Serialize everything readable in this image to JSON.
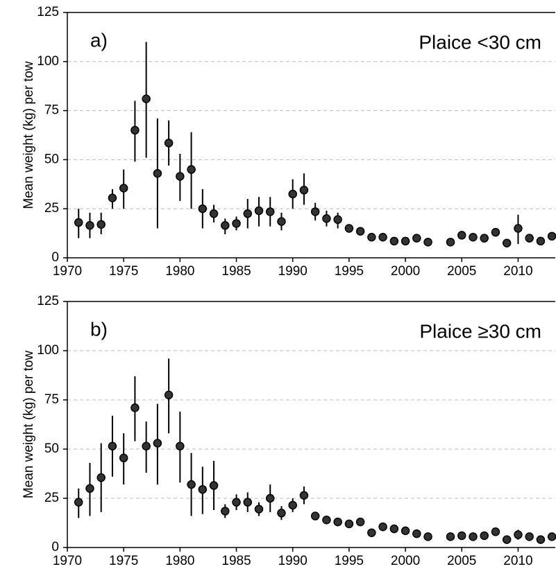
{
  "chart_data": [
    {
      "type": "errorbar-scatter",
      "label": "a)",
      "title": "Plaice <30 cm",
      "ylabel": "Mean weight (kg) per tow",
      "xlim": [
        1970,
        2013.3
      ],
      "xticks": [
        1970,
        1975,
        1980,
        1985,
        1990,
        1995,
        2000,
        2005,
        2010
      ],
      "ylim": [
        0,
        125
      ],
      "yticks": [
        0,
        25,
        50,
        75,
        100,
        125
      ],
      "grid": true,
      "color": "#333333",
      "x": [
        1971,
        1972,
        1973,
        1974,
        1975,
        1976,
        1977,
        1978,
        1979,
        1980,
        1981,
        1982,
        1983,
        1984,
        1985,
        1986,
        1987,
        1988,
        1989,
        1990,
        1991,
        1992,
        1993,
        1994,
        1995,
        1996,
        1997,
        1998,
        1999,
        2000,
        2001,
        2002,
        2004,
        2005,
        2006,
        2007,
        2008,
        2009,
        2010,
        2011,
        2012,
        2013
      ],
      "values": [
        18,
        16.5,
        17,
        30.5,
        35.5,
        65,
        81,
        43,
        58.5,
        41.5,
        45,
        25,
        22.5,
        16.5,
        17.5,
        22.5,
        24,
        23.5,
        18.5,
        32.5,
        34.5,
        23.5,
        20,
        19.5,
        15,
        13.5,
        10.5,
        10.5,
        8.5,
        8.5,
        10,
        8,
        8,
        11.5,
        10.5,
        10,
        13,
        7.5,
        15,
        10,
        8.5,
        11
      ],
      "lower": [
        10,
        10,
        12,
        25,
        25,
        49,
        51,
        15,
        47,
        29,
        25,
        15,
        18,
        12,
        14,
        15,
        16,
        16,
        14,
        25,
        27,
        19,
        16,
        15,
        13,
        12,
        9,
        9,
        7,
        7,
        8,
        7,
        7,
        10,
        9,
        9,
        11,
        6,
        7,
        9,
        7,
        9
      ],
      "upper": [
        25,
        23,
        23,
        35,
        45,
        80,
        110,
        71,
        70,
        53,
        64,
        35,
        27,
        20,
        21,
        30,
        31,
        31,
        23,
        40,
        43,
        28,
        24,
        23,
        17,
        15,
        12,
        12,
        10,
        10,
        12,
        9,
        9,
        13,
        12,
        11,
        15,
        9,
        22,
        11,
        10,
        13
      ]
    },
    {
      "type": "errorbar-scatter",
      "label": "b)",
      "title": "Plaice ≥30 cm",
      "ylabel": "Mean weight (kg) per tow",
      "xlim": [
        1970,
        2013.3
      ],
      "xticks": [
        1970,
        1975,
        1980,
        1985,
        1990,
        1995,
        2000,
        2005,
        2010
      ],
      "ylim": [
        0,
        125
      ],
      "yticks": [
        0,
        25,
        50,
        75,
        100,
        125
      ],
      "grid": true,
      "color": "#333333",
      "x": [
        1971,
        1972,
        1973,
        1974,
        1975,
        1976,
        1977,
        1978,
        1979,
        1980,
        1981,
        1982,
        1983,
        1984,
        1985,
        1986,
        1987,
        1988,
        1989,
        1990,
        1991,
        1992,
        1993,
        1994,
        1995,
        1996,
        1997,
        1998,
        1999,
        2000,
        2001,
        2002,
        2004,
        2005,
        2006,
        2007,
        2008,
        2009,
        2010,
        2011,
        2012,
        2013
      ],
      "values": [
        23,
        30,
        35.5,
        51.5,
        45.5,
        71,
        51.5,
        53,
        77.5,
        51.5,
        32,
        29.5,
        31.5,
        18.5,
        23,
        23,
        19.5,
        25,
        17.5,
        21.5,
        26.5,
        16,
        14,
        13,
        12,
        13,
        7.5,
        10.5,
        9.5,
        8.5,
        7,
        5.5,
        5.5,
        6,
        5.5,
        6,
        8,
        4,
        6.5,
        5.5,
        4,
        5.5
      ],
      "lower": [
        15,
        16,
        18,
        36,
        32,
        54,
        38,
        32,
        58,
        33,
        16,
        17,
        19,
        15,
        19,
        18,
        16,
        18,
        14,
        18,
        22,
        14,
        12,
        11,
        10,
        11,
        6,
        9,
        8,
        7,
        6,
        4.5,
        4.5,
        5,
        4.5,
        5,
        7,
        3,
        4,
        4.5,
        3,
        4.5
      ],
      "upper": [
        30,
        43,
        53,
        67,
        58,
        87,
        64,
        73,
        96,
        69,
        48,
        41,
        44,
        22,
        27,
        28,
        23,
        32,
        21,
        25,
        31,
        18,
        16,
        15,
        14,
        15,
        9,
        12,
        11,
        10,
        8,
        6.5,
        6.5,
        7,
        6.5,
        7,
        9,
        5,
        9,
        6.5,
        5,
        6.5
      ]
    }
  ]
}
